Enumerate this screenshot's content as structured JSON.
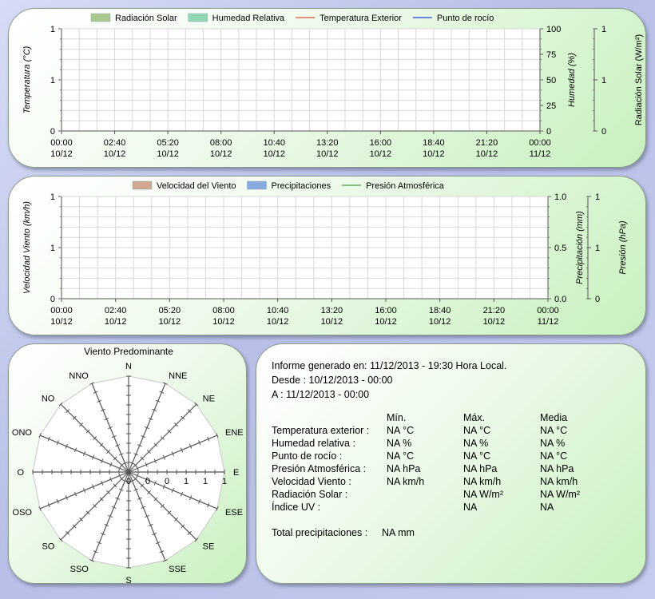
{
  "chart_data": [
    {
      "type": "line",
      "legend": [
        {
          "name": "Radiación Solar",
          "kind": "area",
          "color": "#a8c890"
        },
        {
          "name": "Humedad Relativa",
          "kind": "area",
          "color": "#8fd6b4"
        },
        {
          "name": "Temperatura Exterior",
          "kind": "line",
          "color": "#e05030"
        },
        {
          "name": "Punto de rocío",
          "kind": "line",
          "color": "#2040e0"
        }
      ],
      "x_ticks": [
        {
          "time": "00:00",
          "date": "10/12"
        },
        {
          "time": "02:40",
          "date": "10/12"
        },
        {
          "time": "05:20",
          "date": "10/12"
        },
        {
          "time": "08:00",
          "date": "10/12"
        },
        {
          "time": "10:40",
          "date": "10/12"
        },
        {
          "time": "13:20",
          "date": "10/12"
        },
        {
          "time": "16:00",
          "date": "10/12"
        },
        {
          "time": "18:40",
          "date": "10/12"
        },
        {
          "time": "21:20",
          "date": "10/12"
        },
        {
          "time": "00:00",
          "date": "11/12"
        }
      ],
      "y_left": {
        "label": "Temperatura (°C)",
        "ticks": [
          "1",
          "1",
          "0"
        ]
      },
      "y_right1": {
        "label": "Humedad (%)",
        "ticks": [
          "100",
          "75",
          "50",
          "25",
          "0"
        ]
      },
      "y_right2": {
        "label": "Radiación Solar (W/m²)",
        "ticks": [
          "1",
          "1",
          "0"
        ]
      },
      "series": []
    },
    {
      "type": "line",
      "legend": [
        {
          "name": "Velocidad del Viento",
          "kind": "area",
          "color": "#d0a890"
        },
        {
          "name": "Precipitaciones",
          "kind": "area",
          "color": "#88a8e0"
        },
        {
          "name": "Presión Atmosférica",
          "kind": "line",
          "color": "#40a040"
        }
      ],
      "x_ticks": [
        {
          "time": "00:00",
          "date": "10/12"
        },
        {
          "time": "02:40",
          "date": "10/12"
        },
        {
          "time": "05:20",
          "date": "10/12"
        },
        {
          "time": "08:00",
          "date": "10/12"
        },
        {
          "time": "10:40",
          "date": "10/12"
        },
        {
          "time": "13:20",
          "date": "10/12"
        },
        {
          "time": "16:00",
          "date": "10/12"
        },
        {
          "time": "18:40",
          "date": "10/12"
        },
        {
          "time": "21:20",
          "date": "10/12"
        },
        {
          "time": "00:00",
          "date": "11/12"
        }
      ],
      "y_left": {
        "label": "Velocidad Viento (km/h)",
        "ticks": [
          "1",
          "1",
          "0"
        ]
      },
      "y_right1": {
        "label": "Precipitación (mm)",
        "ticks": [
          "1.0",
          "0.5",
          "0.0"
        ]
      },
      "y_right2": {
        "label": "Presión (hPa)",
        "ticks": [
          "1",
          "1",
          "0"
        ]
      },
      "series": []
    },
    {
      "type": "radar",
      "title": "Viento Predominante",
      "directions": [
        "N",
        "NNE",
        "NE",
        "ENE",
        "E",
        "ESE",
        "SE",
        "SSE",
        "S",
        "SSO",
        "SO",
        "OSO",
        "O",
        "ONO",
        "NO",
        "NNO"
      ],
      "radial_ticks": [
        "0",
        "0",
        "0",
        "1",
        "1",
        "1"
      ],
      "values": []
    }
  ],
  "report": {
    "generated": "Informe generado en: 11/12/2013 - 19:30 Hora Local.",
    "desde": "Desde : 10/12/2013 - 00:00",
    "hasta": "A : 11/12/2013 - 00:00",
    "headers": [
      "Mín.",
      "Máx.",
      "Media"
    ],
    "rows": [
      {
        "label": "Temperatura exterior :",
        "min": "NA °C",
        "max": "NA °C",
        "avg": "NA °C"
      },
      {
        "label": "Humedad relativa :",
        "min": "NA %",
        "max": "NA %",
        "avg": "NA %"
      },
      {
        "label": "Punto de rocío :",
        "min": "NA °C",
        "max": "NA °C",
        "avg": "NA °C"
      },
      {
        "label": "Presión Atmosférica :",
        "min": "NA hPa",
        "max": "NA hPa",
        "avg": "NA hPa"
      },
      {
        "label": "Velocidad Viento :",
        "min": "NA km/h",
        "max": "NA km/h",
        "avg": "NA km/h"
      },
      {
        "label": "Radiación Solar :",
        "min": "",
        "max": "NA W/m²",
        "avg": "NA W/m²"
      },
      {
        "label": "Índice UV :",
        "min": "",
        "max": "NA",
        "avg": "NA"
      }
    ],
    "total_label": "Total precipitaciones :",
    "total_value": "NA mm"
  }
}
